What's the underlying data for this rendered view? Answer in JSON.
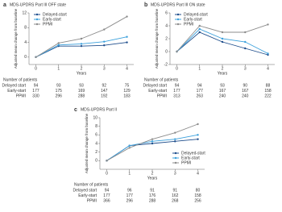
{
  "chart_data": [
    {
      "type": "line",
      "label": "a",
      "title": "MDS-UPDRS Part III OFF state",
      "xlabel": "Years",
      "ylabel": "Adjusted mean change from baseline",
      "x": [
        0,
        1,
        2,
        3,
        4
      ],
      "xlim": [
        -0.3,
        4.3
      ],
      "xticks": [
        0,
        1,
        2,
        3,
        4
      ],
      "ylim": [
        -2,
        12
      ],
      "yticks": [
        0,
        4,
        8,
        12
      ],
      "legend": "upper left",
      "series": [
        {
          "name": "Delayed-start",
          "color": "#1f4e8c",
          "values": [
            0,
            3,
            3,
            3.2,
            4
          ]
        },
        {
          "name": "Early-start",
          "color": "#3ba0dc",
          "values": [
            0,
            3.3,
            3.6,
            4.2,
            5.5
          ]
        },
        {
          "name": "PPMI",
          "color": "#8c8c8c",
          "values": [
            0,
            3.8,
            5,
            7.5,
            11
          ]
        }
      ],
      "table": {
        "title": "Number of patients",
        "rows": [
          {
            "name": "Delayed start",
            "values": [
              94,
              93,
              93,
              92,
              75
            ]
          },
          {
            "name": "Early-start",
            "values": [
              177,
              175,
              169,
              147,
              129
            ]
          },
          {
            "name": "PPMI",
            "values": [
              330,
              296,
              288,
              192,
              183
            ]
          }
        ]
      }
    },
    {
      "type": "line",
      "label": "b",
      "title": "MDS-UPDRS Part III ON state",
      "xlabel": "Years",
      "ylabel": "Adjusted mean change from baseline",
      "x": [
        0,
        1,
        2,
        3,
        4
      ],
      "xlim": [
        -0.3,
        4.3
      ],
      "xticks": [
        0,
        1,
        2,
        3,
        4
      ],
      "ylim": [
        -2,
        6
      ],
      "yticks": [
        -2,
        0,
        2,
        4,
        6
      ],
      "legend": "upper left",
      "series": [
        {
          "name": "Delayed-start",
          "color": "#1f4e8c",
          "values": [
            0,
            3,
            1.5,
            0.5,
            -0.5
          ]
        },
        {
          "name": "Early-start",
          "color": "#3ba0dc",
          "values": [
            0,
            3.5,
            2,
            1.5,
            -0.3
          ]
        },
        {
          "name": "PPMI",
          "color": "#8c8c8c",
          "values": [
            0,
            4,
            3,
            3,
            4.2
          ]
        }
      ],
      "table": {
        "title": "Number of patients",
        "rows": [
          {
            "name": "Delayed start",
            "values": [
              94,
              94,
              93,
              90,
              88
            ]
          },
          {
            "name": "Early-start",
            "values": [
              177,
              177,
              167,
              167,
              158
            ]
          },
          {
            "name": "PPMI",
            "values": [
              313,
              263,
              240,
              240,
              222
            ]
          }
        ]
      }
    },
    {
      "type": "line",
      "label": "c",
      "title": "MDS-UPDRS Part II",
      "xlabel": "Years",
      "ylabel": "Adjusted mean change from baseline",
      "x": [
        0,
        1,
        2,
        3,
        4
      ],
      "xlim": [
        -0.3,
        4.3
      ],
      "xticks": [
        0,
        1,
        2,
        3,
        4
      ],
      "ylim": [
        -2,
        10
      ],
      "yticks": [
        0,
        2,
        4,
        6,
        8,
        10
      ],
      "legend": "lower right",
      "series": [
        {
          "name": "Delayed-start",
          "color": "#1f4e8c",
          "values": [
            0,
            3.5,
            4,
            4.5,
            5
          ]
        },
        {
          "name": "Early-start",
          "color": "#3ba0dc",
          "values": [
            0,
            3.5,
            4.5,
            5,
            6
          ]
        },
        {
          "name": "PPMI",
          "color": "#8c8c8c",
          "values": [
            0,
            3,
            5,
            6.5,
            8.5
          ]
        }
      ],
      "table": {
        "title": "Number of patients",
        "rows": [
          {
            "name": "Delayed start",
            "values": [
              94,
              96,
              91,
              91,
              80
            ]
          },
          {
            "name": "Early-start",
            "values": [
              177,
              177,
              176,
              162,
              158
            ]
          },
          {
            "name": "PPMI",
            "values": [
              366,
              296,
              288,
              268,
              256
            ]
          }
        ]
      }
    }
  ]
}
